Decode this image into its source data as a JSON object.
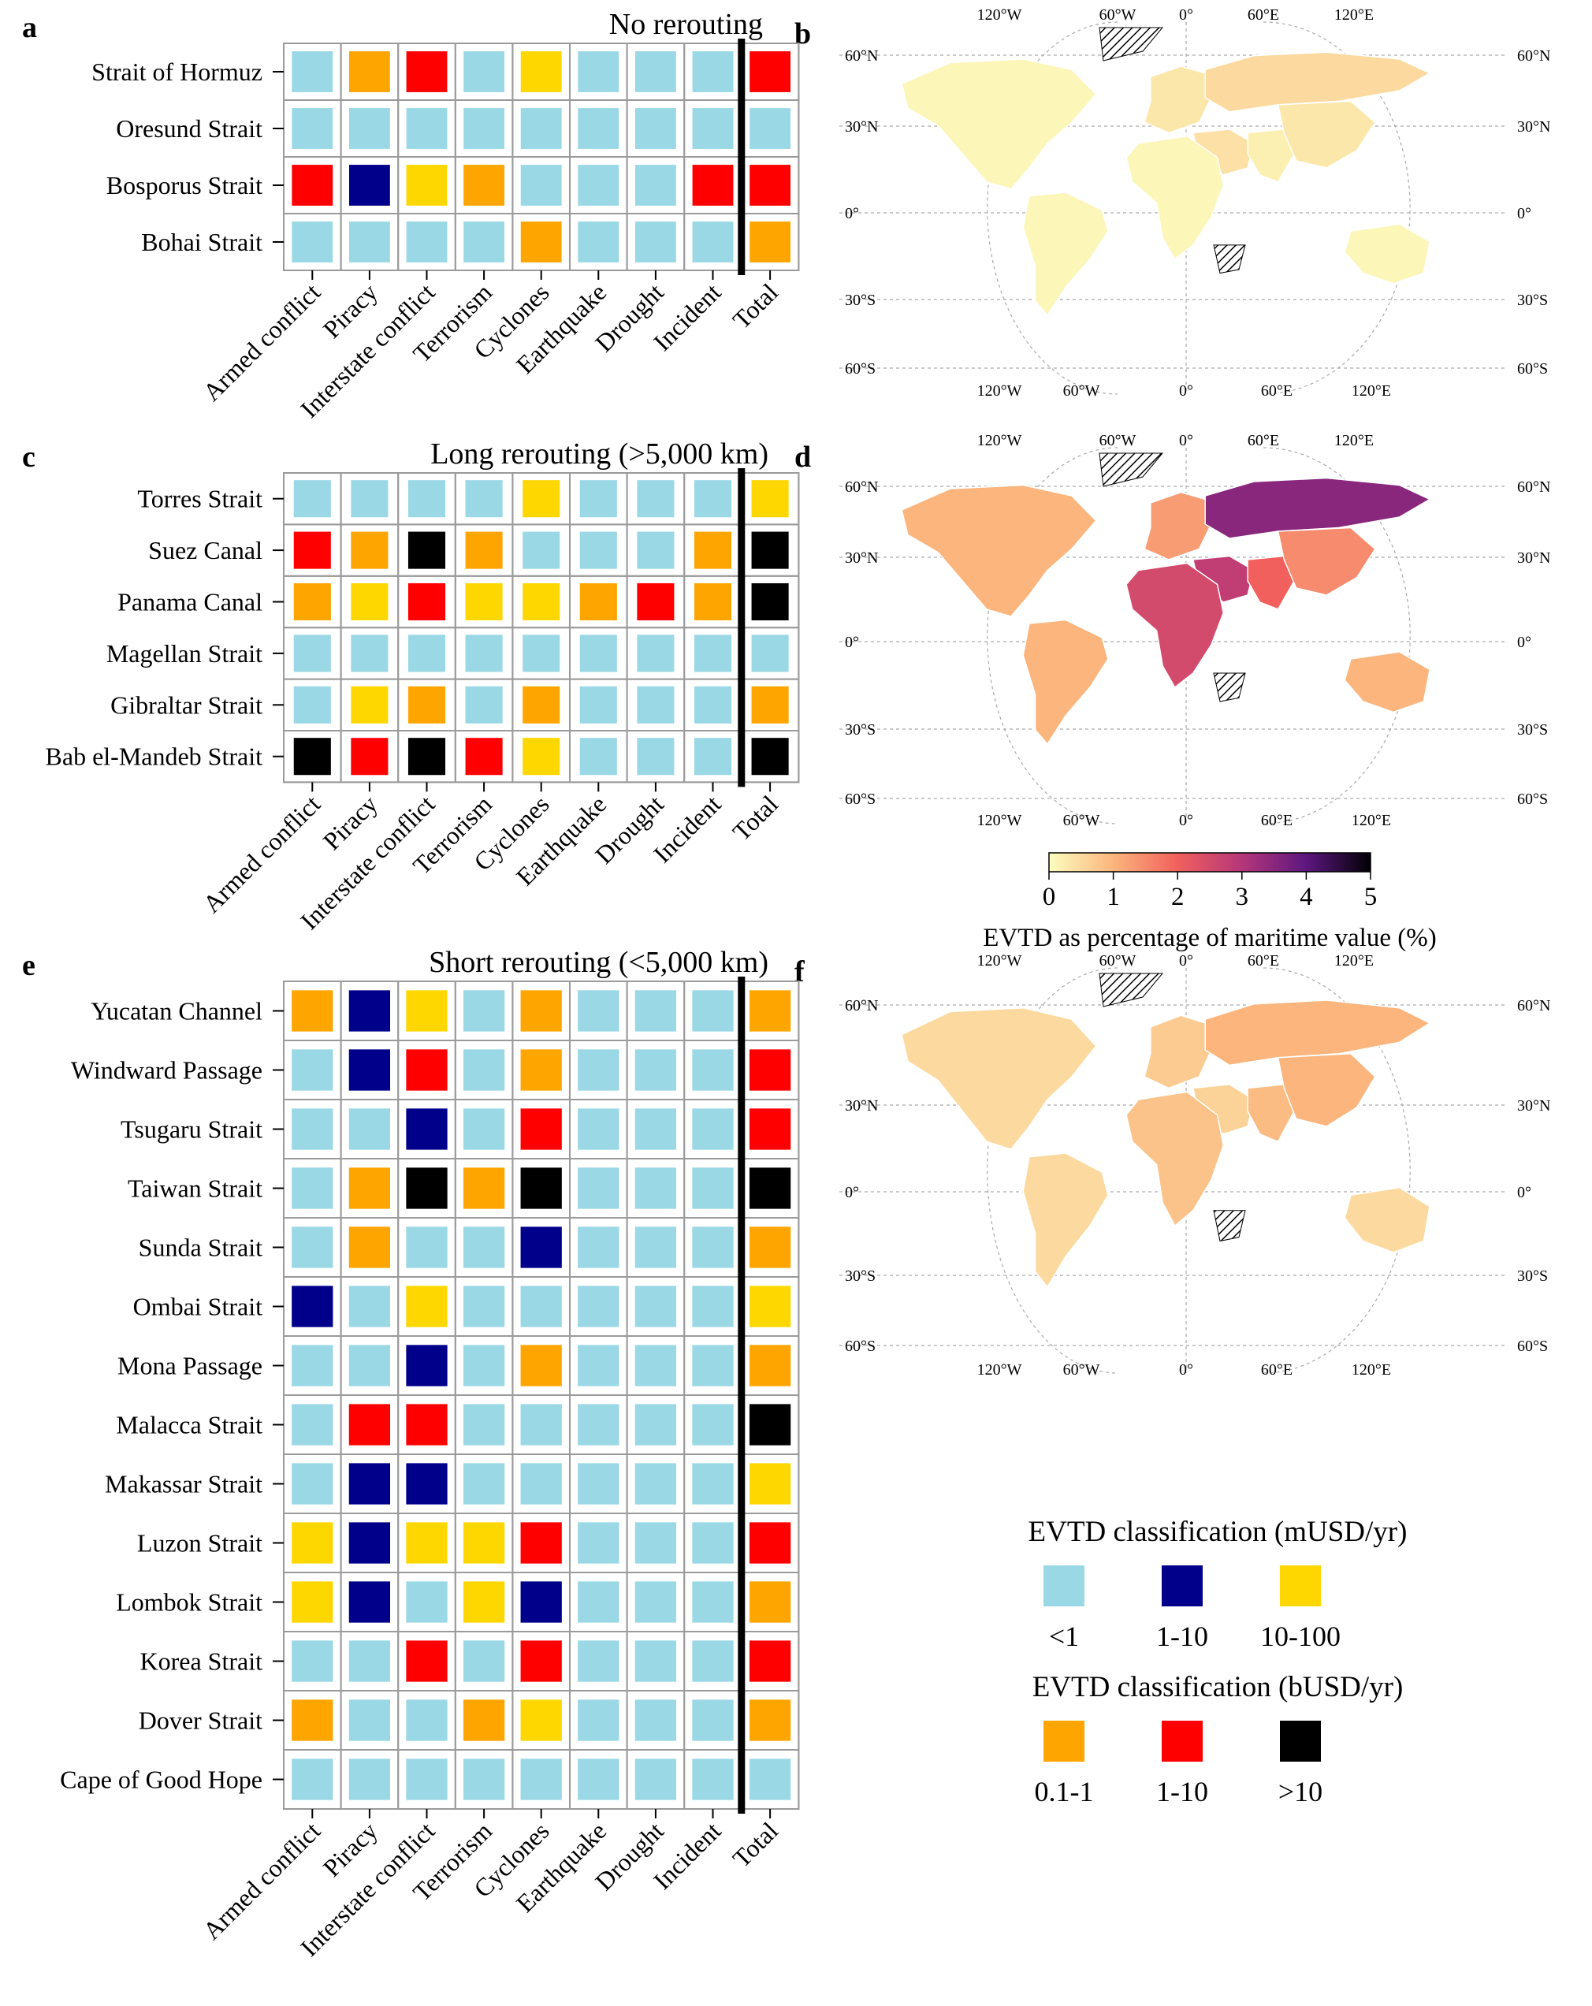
{
  "colors": {
    "c1": "#9ad8e6",
    "c2": "#00008b",
    "c3": "#ffd700",
    "c4": "#ffa500",
    "c5": "#ff0000",
    "c6": "#000000",
    "land_base": "#fdf6c3",
    "ocean": "#ffffff"
  },
  "panels": {
    "a": {
      "letter": "a",
      "title": "No rerouting"
    },
    "b": {
      "letter": "b"
    },
    "c": {
      "letter": "c",
      "title": "Long rerouting (>5,000 km)"
    },
    "d": {
      "letter": "d"
    },
    "e": {
      "letter": "e",
      "title": "Short rerouting (<5,000 km)"
    },
    "f": {
      "letter": "f"
    }
  },
  "map_axis": {
    "lon_top": [
      "120°W",
      "60°W",
      "0°",
      "60°E",
      "120°E"
    ],
    "lon_bottom": [
      "120°W",
      "60°W",
      "0°",
      "60°E",
      "120°E"
    ],
    "lat_labels": [
      "60°N",
      "30°N",
      "0°",
      "30°S",
      "60°S"
    ]
  },
  "colorbar": {
    "ticks": [
      "0",
      "1",
      "2",
      "3",
      "4",
      "5"
    ],
    "range": [
      0,
      5
    ],
    "label": "EVTD as percentage of maritime value (%)"
  },
  "legend": {
    "title_m": "EVTD classification (mUSD/yr)",
    "title_b": "EVTD classification (bUSD/yr)",
    "items_m": [
      {
        "cls": "c1",
        "label": "<1"
      },
      {
        "cls": "c2",
        "label": "1-10"
      },
      {
        "cls": "c3",
        "label": "10-100"
      }
    ],
    "items_b": [
      {
        "cls": "c4",
        "label": "0.1-1"
      },
      {
        "cls": "c5",
        "label": "1-10"
      },
      {
        "cls": "c6",
        "label": ">10"
      }
    ]
  },
  "chart_data": [
    {
      "type": "heatmap",
      "panel": "a",
      "title": "No rerouting",
      "columns": [
        "Armed conflict",
        "Piracy",
        "Interstate conflict",
        "Terrorism",
        "Cyclones",
        "Earthquake",
        "Drought",
        "Incident",
        "Total"
      ],
      "rows": [
        "Strait of Hormuz",
        "Oresund Strait",
        "Bosporus Strait",
        "Bohai Strait"
      ],
      "values": [
        [
          "c1",
          "c4",
          "c5",
          "c1",
          "c3",
          "c1",
          "c1",
          "c1",
          "c5"
        ],
        [
          "c1",
          "c1",
          "c1",
          "c1",
          "c1",
          "c1",
          "c1",
          "c1",
          "c1"
        ],
        [
          "c5",
          "c2",
          "c3",
          "c4",
          "c1",
          "c1",
          "c1",
          "c5",
          "c5"
        ],
        [
          "c1",
          "c1",
          "c1",
          "c1",
          "c4",
          "c1",
          "c1",
          "c1",
          "c4"
        ]
      ]
    },
    {
      "type": "heatmap",
      "panel": "c",
      "title": "Long rerouting (>5,000 km)",
      "columns": [
        "Armed conflict",
        "Piracy",
        "Interstate conflict",
        "Terrorism",
        "Cyclones",
        "Earthquake",
        "Drought",
        "Incident",
        "Total"
      ],
      "rows": [
        "Torres Strait",
        "Suez Canal",
        "Panama Canal",
        "Magellan Strait",
        "Gibraltar Strait",
        "Bab el-Mandeb Strait"
      ],
      "values": [
        [
          "c1",
          "c1",
          "c1",
          "c1",
          "c3",
          "c1",
          "c1",
          "c1",
          "c3"
        ],
        [
          "c5",
          "c4",
          "c6",
          "c4",
          "c1",
          "c1",
          "c1",
          "c4",
          "c6"
        ],
        [
          "c4",
          "c3",
          "c5",
          "c3",
          "c3",
          "c4",
          "c5",
          "c4",
          "c6"
        ],
        [
          "c1",
          "c1",
          "c1",
          "c1",
          "c1",
          "c1",
          "c1",
          "c1",
          "c1"
        ],
        [
          "c1",
          "c3",
          "c4",
          "c1",
          "c4",
          "c1",
          "c1",
          "c1",
          "c4"
        ],
        [
          "c6",
          "c5",
          "c6",
          "c5",
          "c3",
          "c1",
          "c1",
          "c1",
          "c6"
        ]
      ]
    },
    {
      "type": "heatmap",
      "panel": "e",
      "title": "Short rerouting (<5,000 km)",
      "columns": [
        "Armed conflict",
        "Piracy",
        "Interstate conflict",
        "Terrorism",
        "Cyclones",
        "Earthquake",
        "Drought",
        "Incident",
        "Total"
      ],
      "rows": [
        "Yucatan Channel",
        "Windward Passage",
        "Tsugaru Strait",
        "Taiwan Strait",
        "Sunda Strait",
        "Ombai Strait",
        "Mona Passage",
        "Malacca Strait",
        "Makassar Strait",
        "Luzon Strait",
        "Lombok Strait",
        "Korea Strait",
        "Dover Strait",
        "Cape of Good Hope"
      ],
      "values": [
        [
          "c4",
          "c2",
          "c3",
          "c1",
          "c4",
          "c1",
          "c1",
          "c1",
          "c4"
        ],
        [
          "c1",
          "c2",
          "c5",
          "c1",
          "c4",
          "c1",
          "c1",
          "c1",
          "c5"
        ],
        [
          "c1",
          "c1",
          "c2",
          "c1",
          "c5",
          "c1",
          "c1",
          "c1",
          "c5"
        ],
        [
          "c1",
          "c4",
          "c6",
          "c4",
          "c6",
          "c1",
          "c1",
          "c1",
          "c6"
        ],
        [
          "c1",
          "c4",
          "c1",
          "c1",
          "c2",
          "c1",
          "c1",
          "c1",
          "c4"
        ],
        [
          "c2",
          "c1",
          "c3",
          "c1",
          "c1",
          "c1",
          "c1",
          "c1",
          "c3"
        ],
        [
          "c1",
          "c1",
          "c2",
          "c1",
          "c4",
          "c1",
          "c1",
          "c1",
          "c4"
        ],
        [
          "c1",
          "c5",
          "c5",
          "c1",
          "c1",
          "c1",
          "c1",
          "c1",
          "c6"
        ],
        [
          "c1",
          "c2",
          "c2",
          "c1",
          "c1",
          "c1",
          "c1",
          "c1",
          "c3"
        ],
        [
          "c3",
          "c2",
          "c3",
          "c3",
          "c5",
          "c1",
          "c1",
          "c1",
          "c5"
        ],
        [
          "c3",
          "c2",
          "c1",
          "c3",
          "c2",
          "c1",
          "c1",
          "c1",
          "c4"
        ],
        [
          "c1",
          "c1",
          "c5",
          "c1",
          "c5",
          "c1",
          "c1",
          "c1",
          "c5"
        ],
        [
          "c4",
          "c1",
          "c1",
          "c4",
          "c3",
          "c1",
          "c1",
          "c1",
          "c4"
        ],
        [
          "c1",
          "c1",
          "c1",
          "c1",
          "c1",
          "c1",
          "c1",
          "c1",
          "c1"
        ]
      ]
    },
    {
      "type": "map",
      "panel": "b",
      "value_scale": [
        0,
        5
      ],
      "regions": [
        {
          "name": "north-america",
          "value": 0.1
        },
        {
          "name": "south-america",
          "value": 0.1
        },
        {
          "name": "europe",
          "value": 0.3
        },
        {
          "name": "russia",
          "value": 0.5
        },
        {
          "name": "middle-east",
          "value": 0.4
        },
        {
          "name": "africa",
          "value": 0.1
        },
        {
          "name": "south-asia",
          "value": 0.2
        },
        {
          "name": "east-asia",
          "value": 0.3
        },
        {
          "name": "australia",
          "value": 0.1
        }
      ]
    },
    {
      "type": "map",
      "panel": "d",
      "value_scale": [
        0,
        5
      ],
      "regions": [
        {
          "name": "north-america",
          "value": 1.0
        },
        {
          "name": "south-america",
          "value": 1.0
        },
        {
          "name": "europe",
          "value": 1.3
        },
        {
          "name": "russia",
          "value": 3.5
        },
        {
          "name": "middle-east",
          "value": 2.8
        },
        {
          "name": "africa",
          "value": 2.5
        },
        {
          "name": "south-asia",
          "value": 2.0
        },
        {
          "name": "east-asia",
          "value": 1.5
        },
        {
          "name": "australia",
          "value": 1.0
        }
      ]
    },
    {
      "type": "map",
      "panel": "f",
      "value_scale": [
        0,
        5
      ],
      "regions": [
        {
          "name": "north-america",
          "value": 0.5
        },
        {
          "name": "south-america",
          "value": 0.5
        },
        {
          "name": "europe",
          "value": 0.7
        },
        {
          "name": "russia",
          "value": 1.0
        },
        {
          "name": "middle-east",
          "value": 0.6
        },
        {
          "name": "africa",
          "value": 0.8
        },
        {
          "name": "south-asia",
          "value": 0.9
        },
        {
          "name": "east-asia",
          "value": 1.0
        },
        {
          "name": "australia",
          "value": 0.5
        }
      ]
    }
  ]
}
